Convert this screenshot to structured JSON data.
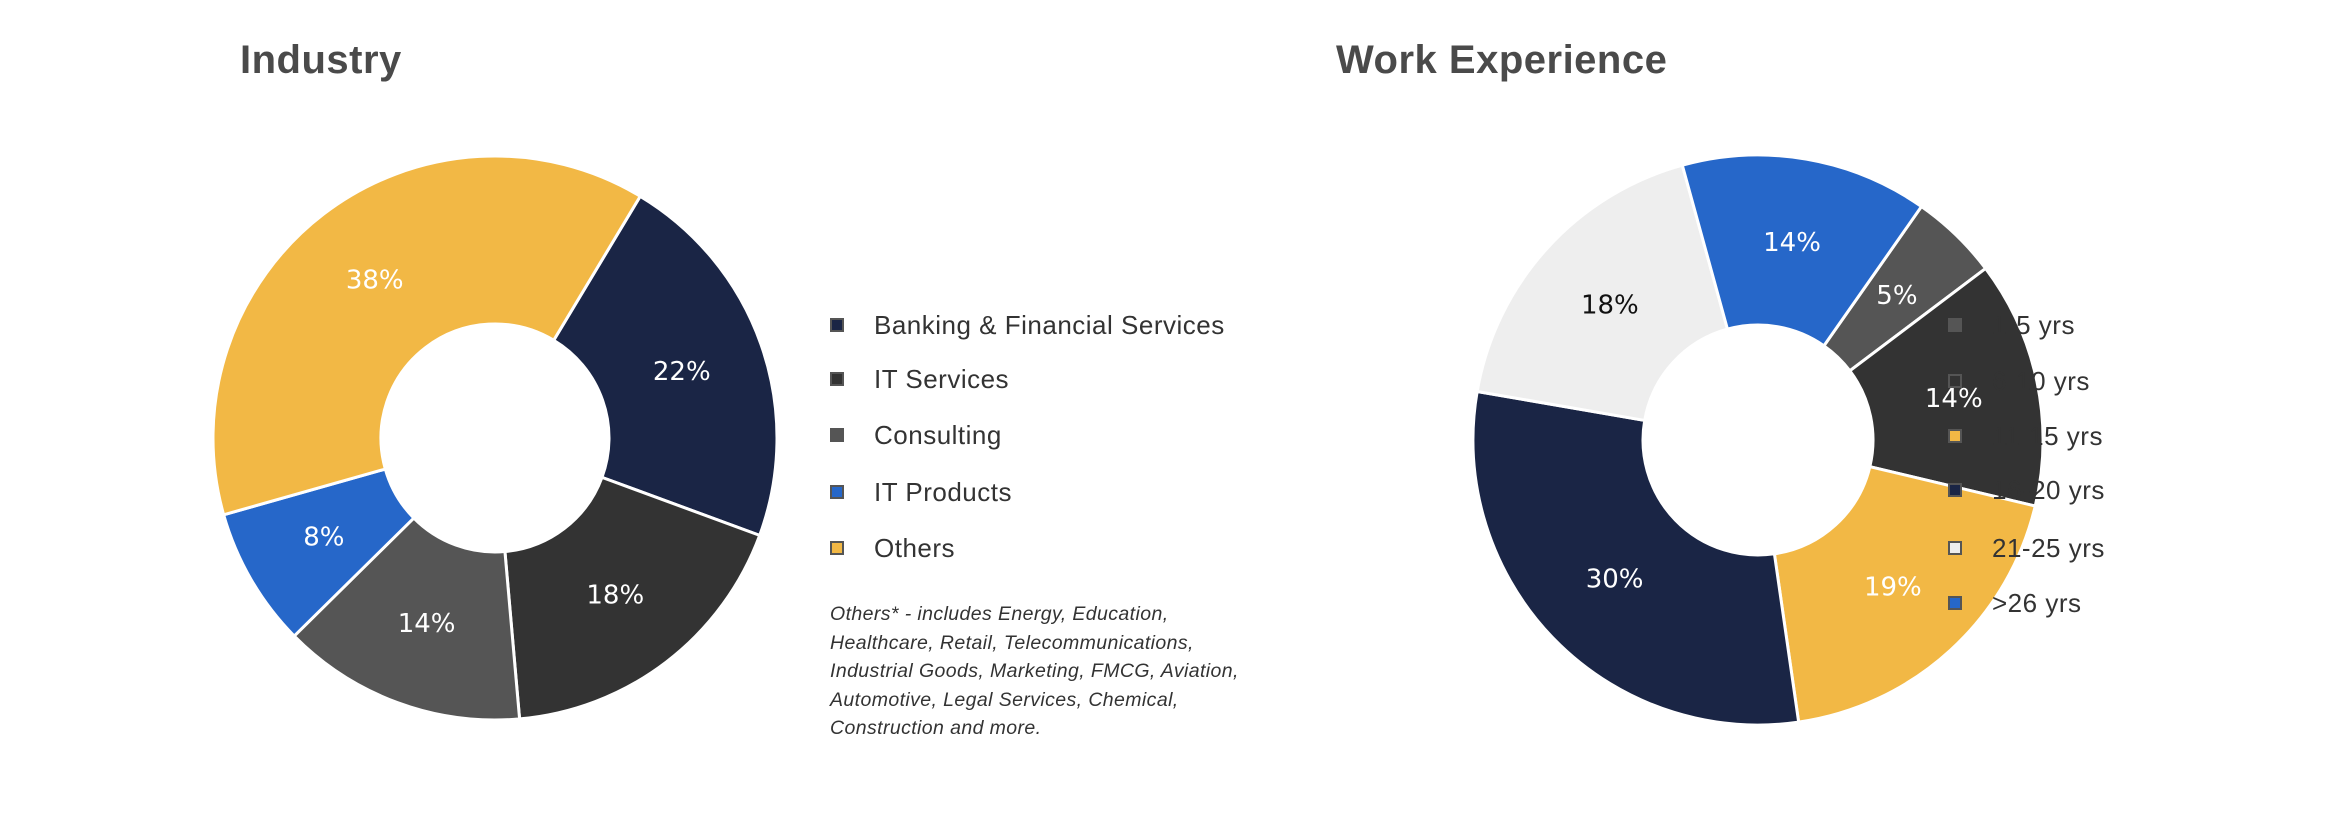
{
  "chart_data": [
    {
      "type": "pie",
      "title": "Industry",
      "categories": [
        "Banking & Financial Services",
        "IT Services",
        "Consulting",
        "IT Products",
        "Others"
      ],
      "values": [
        22,
        18,
        14,
        8,
        38
      ],
      "data_labels": [
        "22%",
        "18%",
        "14%",
        "8%",
        "38%"
      ],
      "colors": [
        "#1a2545",
        "#333333",
        "#555555",
        "#2667c9",
        "#f2b845"
      ],
      "label_colors": [
        "#ffffff",
        "#ffffff",
        "#ffffff",
        "#ffffff",
        "#ffffff"
      ],
      "legend": "right",
      "note": "Others* - includes Energy, Education, Healthcare, Retail, Telecommunications, Industrial Goods, Marketing, FMCG, Aviation, Automotive, Legal Services, Chemical, Construction and more."
    },
    {
      "type": "pie",
      "title": "Work Experience",
      "categories": [
        "1-5 yrs",
        "6-10 yrs",
        "11-15 yrs",
        "16-20 yrs",
        "21-25 yrs",
        ">26 yrs"
      ],
      "values": [
        5,
        14,
        19,
        30,
        18,
        14
      ],
      "data_labels": [
        "5%",
        "14%",
        "19%",
        "30%",
        "18%",
        "14%"
      ],
      "colors": [
        "#555555",
        "#333333",
        "#f2b845",
        "#1a2545",
        "#eeeeee",
        "#2667c9"
      ],
      "label_colors": [
        "#ffffff",
        "#ffffff",
        "#ffffff",
        "#ffffff",
        "#111111",
        "#ffffff"
      ],
      "legend": "right"
    }
  ]
}
